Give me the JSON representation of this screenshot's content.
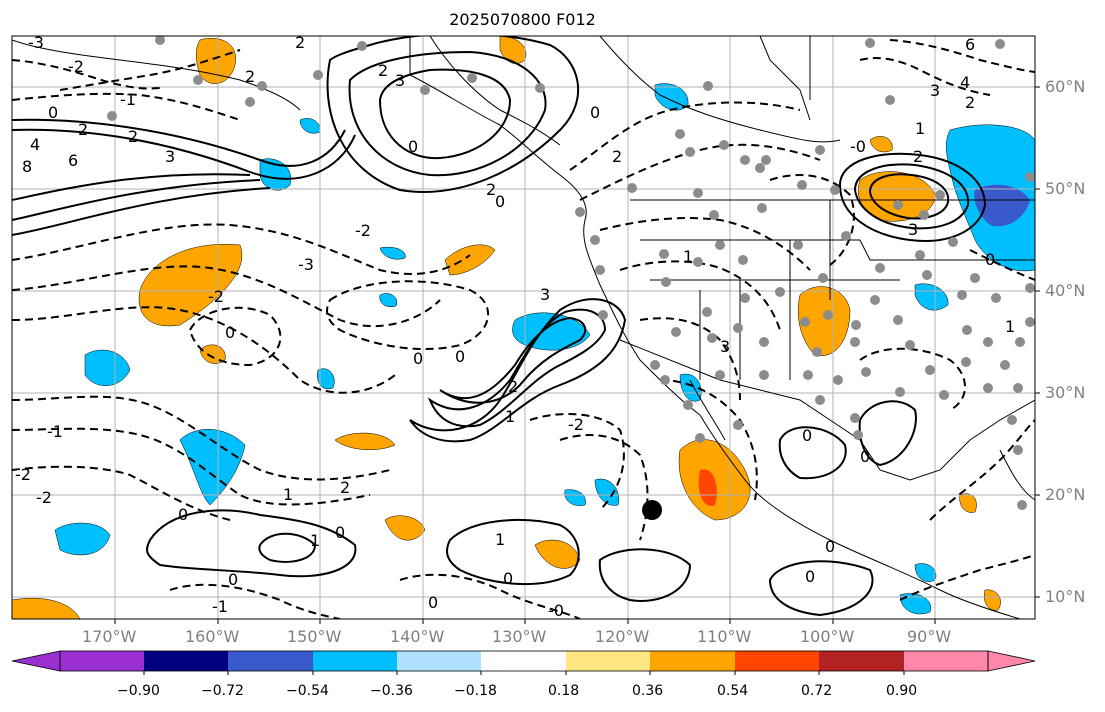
{
  "title": "2025070800 F012",
  "lat_labels": [
    "60°N",
    "50°N",
    "40°N",
    "30°N",
    "20°N",
    "10°N"
  ],
  "lon_labels": [
    "170°W",
    "160°W",
    "150°W",
    "140°W",
    "130°W",
    "120°W",
    "110°W",
    "100°W",
    "90°W"
  ],
  "colorbar": {
    "labels": [
      "−0.90",
      "−0.72",
      "−0.54",
      "−0.36",
      "−0.18",
      "0.18",
      "0.36",
      "0.54",
      "0.72",
      "0.90"
    ],
    "colors": [
      "#9b30d0",
      "#000080",
      "#3a5acc",
      "#00bfff",
      "#b0e2ff",
      "#ffffff",
      "#ffe680",
      "#ffa500",
      "#ff4500",
      "#b22222",
      "#ff88aa"
    ]
  },
  "contour_labels": [
    "-3",
    "-2",
    "-1",
    "0",
    "1",
    "2",
    "3",
    "4",
    "6",
    "8"
  ]
}
